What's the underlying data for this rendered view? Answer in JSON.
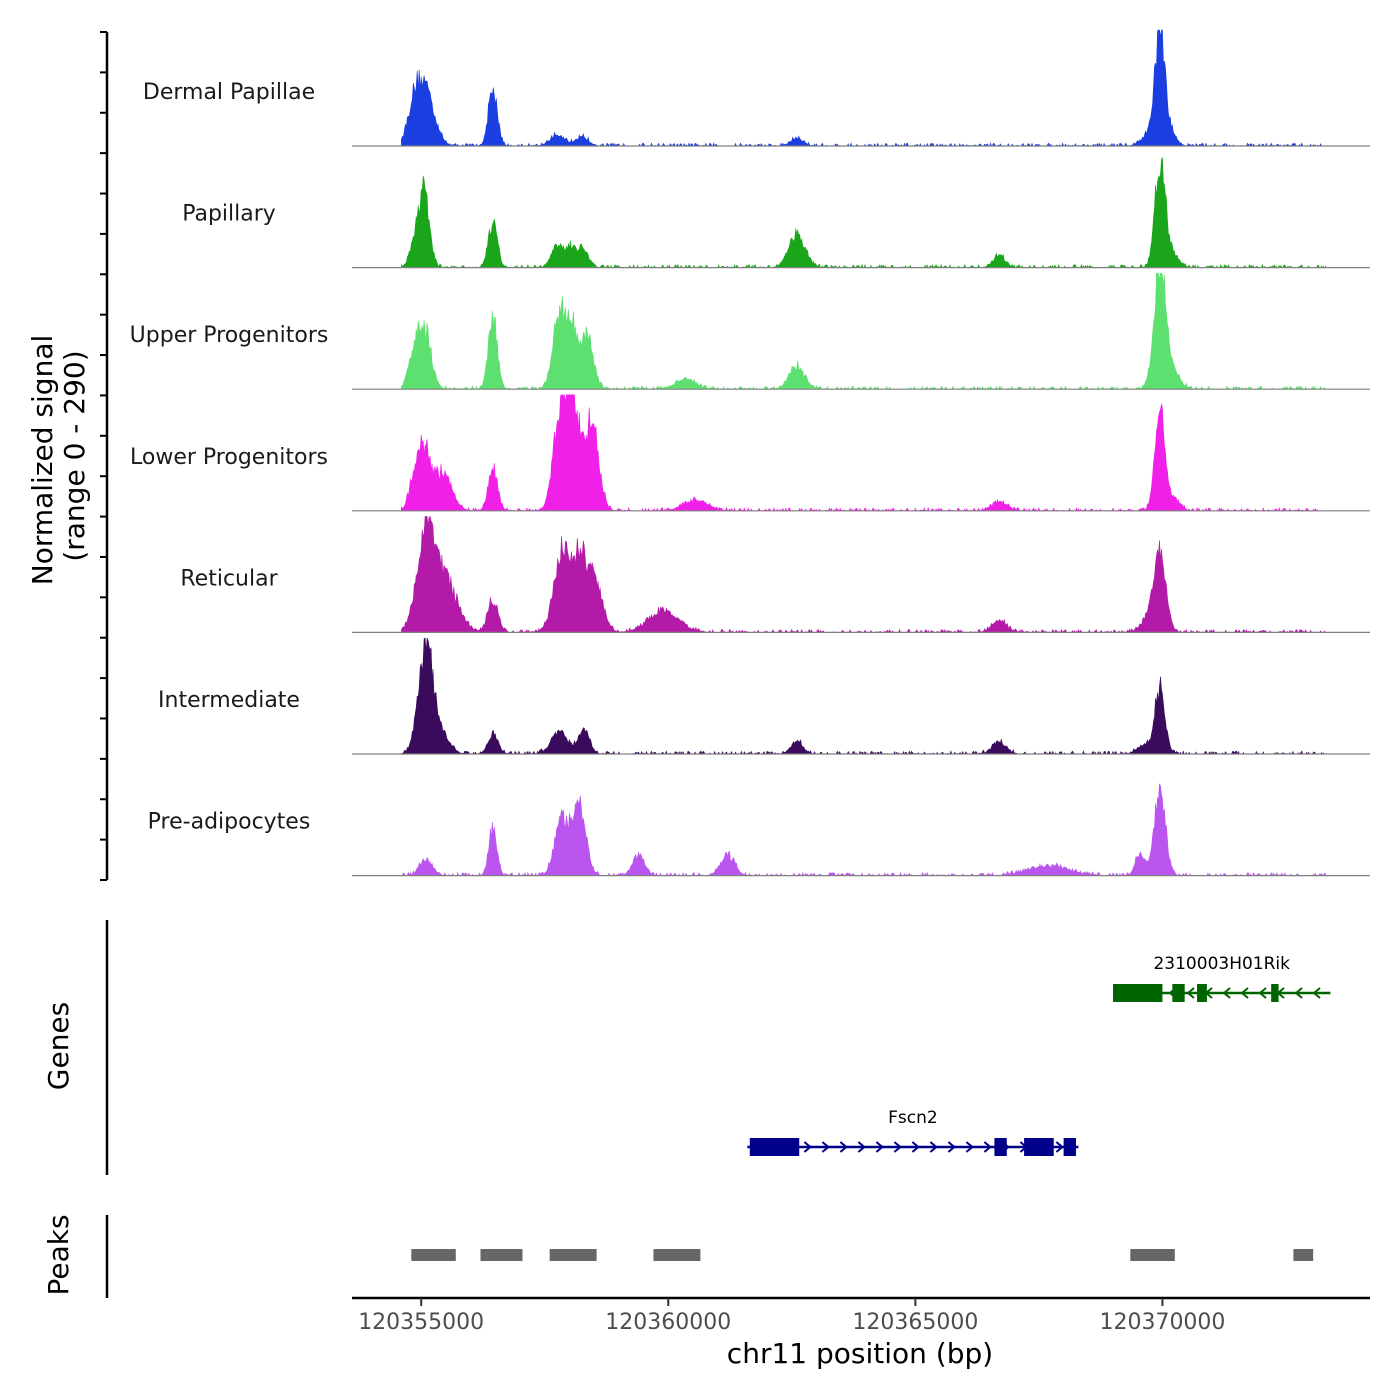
{
  "chart_data": {
    "type": "area",
    "title": "",
    "xlabel": "chr11 position (bp)",
    "ylabel_line1": "Normalized signal",
    "ylabel_line2": "(range 0 - 290)",
    "xlim": [
      120353600,
      120374200
    ],
    "data_xrange": [
      120354600,
      120373300
    ],
    "ylim": [
      0,
      290
    ],
    "x_ticks": [
      120355000,
      120360000,
      120365000,
      120370000
    ],
    "x_tick_labels": [
      "120355000",
      "120360000",
      "120365000",
      "120370000"
    ],
    "panel_titles": {
      "genes": "Genes",
      "peaks": "Peaks"
    },
    "tracks": [
      {
        "name": "Dermal Papillae",
        "color": "#1a3ee0",
        "peaks": [
          [
            120355050,
            160,
            190
          ],
          [
            120354820,
            45,
            110
          ],
          [
            120356450,
            140,
            90
          ],
          [
            120357750,
            25,
            150
          ],
          [
            120358250,
            22,
            130
          ],
          [
            120362600,
            18,
            130
          ],
          [
            120369750,
            30,
            160
          ],
          [
            120369950,
            280,
            95
          ],
          [
            120370150,
            35,
            120
          ]
        ]
      },
      {
        "name": "Papillary",
        "color": "#1aa51a",
        "peaks": [
          [
            120355050,
            200,
            110
          ],
          [
            120354820,
            40,
            80
          ],
          [
            120356450,
            110,
            90
          ],
          [
            120357750,
            55,
            110
          ],
          [
            120358000,
            45,
            90
          ],
          [
            120358250,
            50,
            120
          ],
          [
            120362600,
            85,
            160
          ],
          [
            120366700,
            28,
            120
          ],
          [
            120369950,
            260,
            100
          ],
          [
            120370150,
            40,
            150
          ]
        ]
      },
      {
        "name": "Upper Progenitors",
        "color": "#5ee070",
        "peaks": [
          [
            120355050,
            160,
            140
          ],
          [
            120354820,
            55,
            100
          ],
          [
            120356450,
            180,
            90
          ],
          [
            120357800,
            190,
            130
          ],
          [
            120358050,
            140,
            110
          ],
          [
            120358350,
            130,
            130
          ],
          [
            120360350,
            25,
            200
          ],
          [
            120362600,
            55,
            160
          ],
          [
            120369950,
            290,
            120
          ],
          [
            120370200,
            40,
            150
          ]
        ]
      },
      {
        "name": "Lower Progenitors",
        "color": "#f020e8",
        "peaks": [
          [
            120355050,
            160,
            140
          ],
          [
            120355450,
            95,
            170
          ],
          [
            120354820,
            45,
            90
          ],
          [
            120356450,
            110,
            90
          ],
          [
            120357850,
            280,
            150
          ],
          [
            120358100,
            200,
            130
          ],
          [
            120358450,
            220,
            140
          ],
          [
            120360550,
            25,
            250
          ],
          [
            120366700,
            22,
            160
          ],
          [
            120369950,
            240,
            100
          ],
          [
            120370250,
            28,
            120
          ]
        ]
      },
      {
        "name": "Reticular",
        "color": "#b31aa8",
        "peaks": [
          [
            120355100,
            260,
            180
          ],
          [
            120355500,
            120,
            240
          ],
          [
            120356450,
            80,
            100
          ],
          [
            120357850,
            200,
            160
          ],
          [
            120358200,
            170,
            130
          ],
          [
            120358500,
            130,
            160
          ],
          [
            120359900,
            55,
            300
          ],
          [
            120366700,
            28,
            150
          ],
          [
            120369950,
            190,
            120
          ],
          [
            120369700,
            30,
            150
          ]
        ]
      },
      {
        "name": "Intermediate",
        "color": "#3a0a5c",
        "peaks": [
          [
            120355100,
            270,
            150
          ],
          [
            120355450,
            40,
            150
          ],
          [
            120356450,
            50,
            100
          ],
          [
            120357800,
            55,
            170
          ],
          [
            120358300,
            60,
            110
          ],
          [
            120362600,
            30,
            120
          ],
          [
            120366700,
            30,
            140
          ],
          [
            120369950,
            160,
            100
          ],
          [
            120369650,
            22,
            150
          ]
        ]
      },
      {
        "name": "Pre-adipocytes",
        "color": "#bb55f0",
        "peaks": [
          [
            120355100,
            40,
            130
          ],
          [
            120356450,
            120,
            80
          ],
          [
            120357850,
            140,
            140
          ],
          [
            120358200,
            170,
            130
          ],
          [
            120359400,
            50,
            120
          ],
          [
            120361200,
            50,
            140
          ],
          [
            120369950,
            220,
            110
          ],
          [
            120369550,
            60,
            90
          ],
          [
            120367700,
            25,
            400
          ]
        ]
      }
    ],
    "genes": [
      {
        "name": "2310003H01Rik",
        "color": "#006400",
        "strand": "-",
        "start": 120369000,
        "end": 120373400,
        "exons": [
          [
            120369000,
            120370000
          ],
          [
            120370200,
            120370450
          ],
          [
            120370700,
            120370900
          ],
          [
            120372200,
            120372350
          ]
        ]
      },
      {
        "name": "Fscn2",
        "color": "#00008b",
        "strand": "+",
        "start": 120361600,
        "end": 120368300,
        "exons": [
          [
            120361650,
            120362650
          ],
          [
            120366600,
            120366850
          ],
          [
            120367200,
            120367800
          ],
          [
            120368000,
            120368250
          ]
        ]
      }
    ],
    "peak_regions": [
      [
        120354800,
        120355700
      ],
      [
        120356200,
        120357050
      ],
      [
        120357600,
        120358550
      ],
      [
        120359700,
        120360650
      ],
      [
        120369350,
        120370250
      ],
      [
        120372650,
        120373050
      ]
    ]
  }
}
